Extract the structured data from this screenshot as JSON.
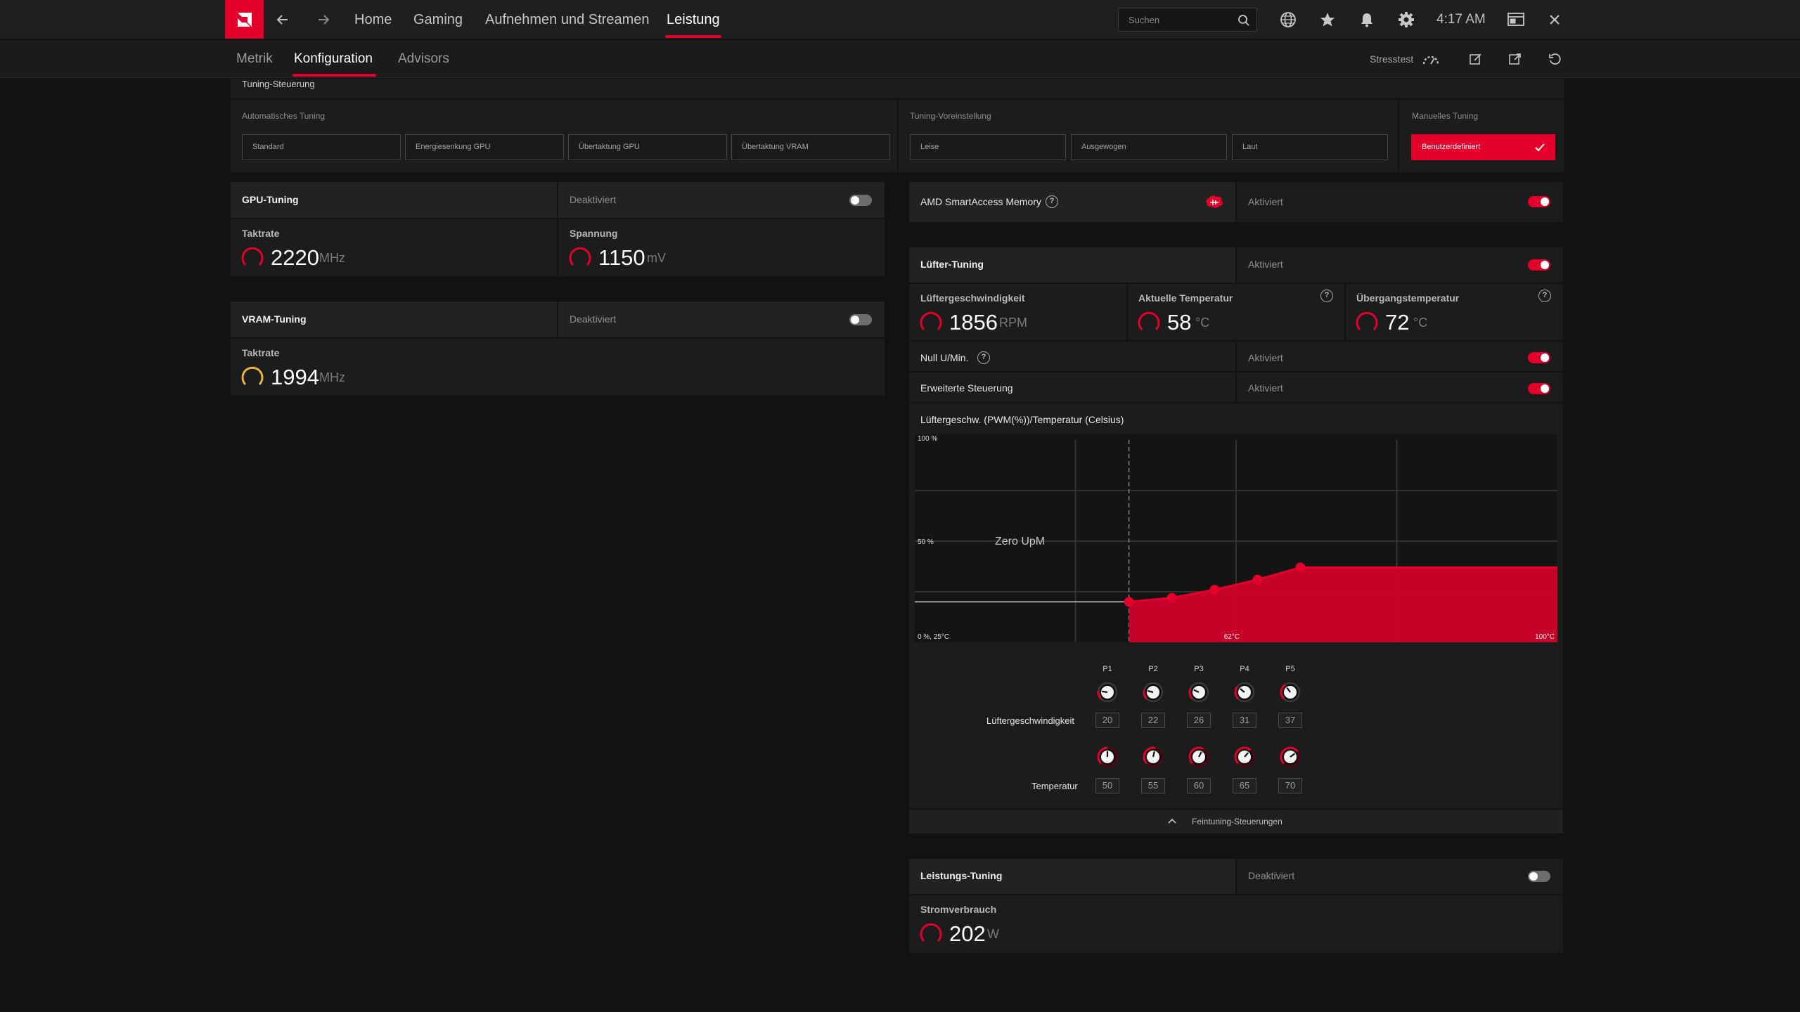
{
  "topbar": {
    "nav": [
      "Home",
      "Gaming",
      "Aufnehmen und Streamen",
      "Leistung"
    ],
    "search_placeholder": "Suchen",
    "time": "4:17 AM"
  },
  "subnav": {
    "tabs": [
      "Metrik",
      "Konfiguration",
      "Advisors"
    ],
    "stresstest": "Stresstest"
  },
  "tuning_control": {
    "title": "Tuning-Steuerung",
    "auto_label": "Automatisches Tuning",
    "auto_options": [
      "Standard",
      "Energiesenkung GPU",
      "Übertaktung GPU",
      "Übertaktung VRAM"
    ],
    "preset_label": "Tuning-Voreinstellung",
    "preset_options": [
      "Leise",
      "Ausgewogen",
      "Laut"
    ],
    "manual_label": "Manuelles Tuning",
    "manual_option": "Benutzerdefiniert"
  },
  "gpu_tuning": {
    "title": "GPU-Tuning",
    "state": "Deaktiviert",
    "enabled": false,
    "clock_label": "Taktrate",
    "clock_value": "2220",
    "clock_unit": "MHz",
    "voltage_label": "Spannung",
    "voltage_value": "1150",
    "voltage_unit": "mV"
  },
  "vram_tuning": {
    "title": "VRAM-Tuning",
    "state": "Deaktiviert",
    "enabled": false,
    "clock_label": "Taktrate",
    "clock_value": "1994",
    "clock_unit": "MHz"
  },
  "smart_access": {
    "title": "AMD SmartAccess Memory",
    "state": "Aktiviert",
    "enabled": true
  },
  "fan_tuning": {
    "title": "Lüfter-Tuning",
    "state": "Aktiviert",
    "enabled": true,
    "speed_label": "Lüftergeschwindigkeit",
    "speed_value": "1856",
    "speed_unit": "RPM",
    "temp_label": "Aktuelle Temperatur",
    "temp_value": "58",
    "temp_unit": "°C",
    "junction_label": "Übergangstemperatur",
    "junction_value": "72",
    "junction_unit": "°C",
    "zero_rpm_label": "Null U/Min.",
    "zero_rpm_state": "Aktiviert",
    "zero_rpm_enabled": true,
    "advanced_label": "Erweiterte Steuerung",
    "advanced_state": "Aktiviert",
    "advanced_enabled": true,
    "curve_title": "Lüftergeschw. (PWM(%))/Temperatur (Celsius)",
    "fine_tune_label": "Feintuning-Steuerungen",
    "speed_row_label": "Lüftergeschwindigkeit",
    "temp_row_label": "Temperatur",
    "points": [
      {
        "name": "P1",
        "speed": "20",
        "temp": "50"
      },
      {
        "name": "P2",
        "speed": "22",
        "temp": "55"
      },
      {
        "name": "P3",
        "speed": "26",
        "temp": "60"
      },
      {
        "name": "P4",
        "speed": "31",
        "temp": "65"
      },
      {
        "name": "P5",
        "speed": "37",
        "temp": "70"
      }
    ]
  },
  "chart_data": {
    "type": "area",
    "title": "Lüftergeschw. (PWM(%))/Temperatur (Celsius)",
    "x_unit": "°C",
    "y_unit": "%",
    "xlim": [
      25,
      100
    ],
    "ylim": [
      0,
      100
    ],
    "y_tick_labels": [
      "100 %",
      "50 %",
      "0 %, 25°C"
    ],
    "x_tick_labels": [
      "62°C",
      "100°C"
    ],
    "annotation": "Zero UpM",
    "zero_rpm_until": 50,
    "series": [
      {
        "x": [
          50,
          55,
          60,
          65,
          70
        ],
        "y": [
          20,
          22,
          26,
          31,
          37
        ]
      }
    ],
    "color": "#e4002b",
    "grid": true
  },
  "power_tuning": {
    "title": "Leistungs-Tuning",
    "state": "Deaktiviert",
    "enabled": false,
    "power_label": "Stromverbrauch",
    "power_value": "202",
    "power_unit": "W"
  },
  "colors": {
    "accent": "#e4002b",
    "amber": "#e8b53a"
  }
}
